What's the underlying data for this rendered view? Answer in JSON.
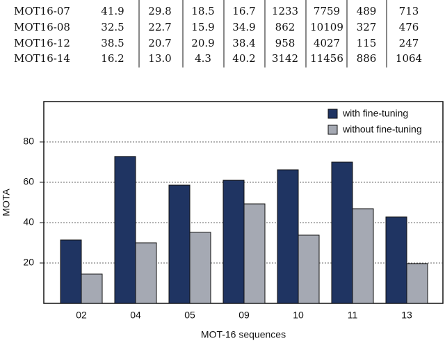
{
  "table": {
    "rows": [
      [
        "MOT16-07",
        "41.9",
        "29.8",
        "18.5",
        "16.7",
        "1233",
        "7759",
        "489",
        "713"
      ],
      [
        "MOT16-08",
        "32.5",
        "22.7",
        "15.9",
        "34.9",
        "862",
        "10109",
        "327",
        "476"
      ],
      [
        "MOT16-12",
        "38.5",
        "20.7",
        "20.9",
        "38.4",
        "958",
        "4027",
        "115",
        "247"
      ],
      [
        "MOT16-14",
        "16.2",
        "13.0",
        "4.3",
        "40.2",
        "3142",
        "11456",
        "886",
        "1064"
      ]
    ]
  },
  "chart_data": {
    "type": "bar",
    "xlabel": "MOT-16 sequences",
    "ylabel": "MOTA",
    "categories": [
      "02",
      "04",
      "05",
      "09",
      "10",
      "11",
      "13"
    ],
    "series": [
      {
        "name": "with fine-tuning",
        "color": "#1f3462",
        "values": [
          31.4,
          72.8,
          58.6,
          61,
          66.2,
          70,
          42.8
        ]
      },
      {
        "name": "without fine-tuning",
        "color": "#a5a9b3",
        "values": [
          14.5,
          30,
          35.2,
          49.3,
          33.8,
          46.9,
          19.7
        ]
      }
    ],
    "ylim": [
      0,
      100
    ],
    "yticks": [
      20,
      40,
      60,
      80
    ],
    "grid": true,
    "legend": "upper right"
  }
}
